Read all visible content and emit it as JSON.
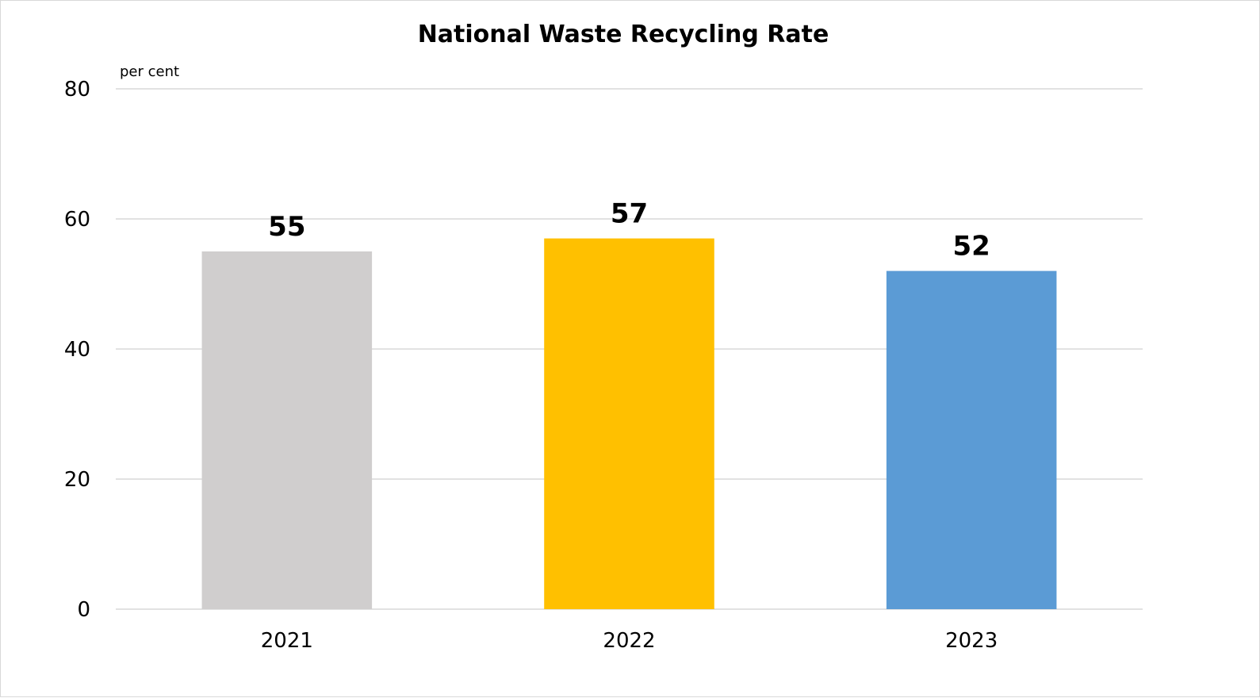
{
  "chart_data": {
    "type": "bar",
    "title": "National Waste Recycling Rate",
    "unit_label": "per cent",
    "xlabel": "",
    "ylabel": "",
    "categories": [
      "2021",
      "2022",
      "2023"
    ],
    "values": [
      55,
      57,
      52
    ],
    "data_labels": [
      "55",
      "57",
      "52"
    ],
    "bar_colors": [
      "#d0cece",
      "#ffc000",
      "#5b9bd5"
    ],
    "ylim": [
      0,
      80
    ],
    "yticks": [
      0,
      20,
      40,
      60,
      80
    ],
    "ytick_labels": [
      "0",
      "20",
      "40",
      "60",
      "80"
    ],
    "grid": true,
    "gridline_color": "#d9d9d9",
    "legend": "none"
  }
}
